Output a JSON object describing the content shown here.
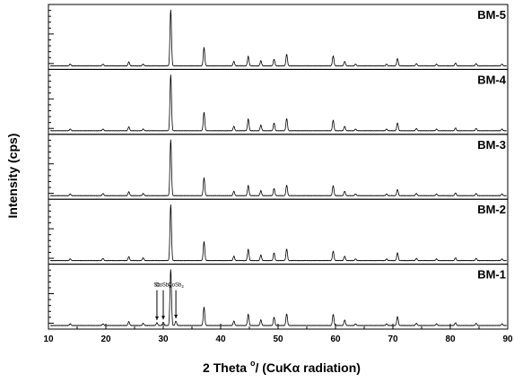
{
  "chart_data": {
    "type": "line",
    "xlabel_parts": {
      "prefix": "2 Theta ",
      "degree": "o",
      "suffix": "/ (CuKα radiation)"
    },
    "ylabel": "Intensity (cps)",
    "xlim": [
      10,
      90
    ],
    "xticks": [
      10,
      20,
      30,
      40,
      50,
      60,
      70,
      80,
      90
    ],
    "panel_order_top_to_bottom": [
      "BM-5",
      "BM-4",
      "BM-3",
      "BM-2",
      "BM-1"
    ],
    "series": [
      {
        "name": "BM-5",
        "peaks": [
          {
            "x": 13.8,
            "y": 0.03
          },
          {
            "x": 19.5,
            "y": 0.03
          },
          {
            "x": 24.0,
            "y": 0.07
          },
          {
            "x": 26.5,
            "y": 0.03
          },
          {
            "x": 31.3,
            "y": 1.0
          },
          {
            "x": 37.1,
            "y": 0.33
          },
          {
            "x": 42.3,
            "y": 0.08
          },
          {
            "x": 44.8,
            "y": 0.17
          },
          {
            "x": 47.0,
            "y": 0.09
          },
          {
            "x": 49.3,
            "y": 0.12
          },
          {
            "x": 51.5,
            "y": 0.21
          },
          {
            "x": 59.6,
            "y": 0.18
          },
          {
            "x": 61.6,
            "y": 0.08
          },
          {
            "x": 63.5,
            "y": 0.03
          },
          {
            "x": 68.9,
            "y": 0.03
          },
          {
            "x": 70.8,
            "y": 0.13
          },
          {
            "x": 74.1,
            "y": 0.04
          },
          {
            "x": 77.6,
            "y": 0.03
          },
          {
            "x": 80.9,
            "y": 0.05
          },
          {
            "x": 84.5,
            "y": 0.04
          },
          {
            "x": 89.0,
            "y": 0.03
          }
        ]
      },
      {
        "name": "BM-4",
        "peaks": [
          {
            "x": 13.8,
            "y": 0.03
          },
          {
            "x": 19.5,
            "y": 0.03
          },
          {
            "x": 24.0,
            "y": 0.07
          },
          {
            "x": 26.5,
            "y": 0.03
          },
          {
            "x": 31.3,
            "y": 1.0
          },
          {
            "x": 37.1,
            "y": 0.33
          },
          {
            "x": 42.3,
            "y": 0.08
          },
          {
            "x": 44.8,
            "y": 0.21
          },
          {
            "x": 47.0,
            "y": 0.1
          },
          {
            "x": 49.3,
            "y": 0.14
          },
          {
            "x": 51.5,
            "y": 0.22
          },
          {
            "x": 59.6,
            "y": 0.19
          },
          {
            "x": 61.6,
            "y": 0.08
          },
          {
            "x": 63.5,
            "y": 0.03
          },
          {
            "x": 68.9,
            "y": 0.03
          },
          {
            "x": 70.8,
            "y": 0.14
          },
          {
            "x": 74.1,
            "y": 0.04
          },
          {
            "x": 77.6,
            "y": 0.03
          },
          {
            "x": 80.9,
            "y": 0.05
          },
          {
            "x": 84.5,
            "y": 0.04
          },
          {
            "x": 89.0,
            "y": 0.03
          }
        ]
      },
      {
        "name": "BM-3",
        "peaks": [
          {
            "x": 13.8,
            "y": 0.03
          },
          {
            "x": 19.5,
            "y": 0.04
          },
          {
            "x": 24.0,
            "y": 0.07
          },
          {
            "x": 26.5,
            "y": 0.04
          },
          {
            "x": 31.3,
            "y": 1.0
          },
          {
            "x": 37.1,
            "y": 0.32
          },
          {
            "x": 42.3,
            "y": 0.08
          },
          {
            "x": 44.8,
            "y": 0.18
          },
          {
            "x": 47.0,
            "y": 0.09
          },
          {
            "x": 49.3,
            "y": 0.13
          },
          {
            "x": 51.5,
            "y": 0.19
          },
          {
            "x": 59.6,
            "y": 0.18
          },
          {
            "x": 61.6,
            "y": 0.08
          },
          {
            "x": 63.5,
            "y": 0.03
          },
          {
            "x": 68.9,
            "y": 0.03
          },
          {
            "x": 70.8,
            "y": 0.11
          },
          {
            "x": 74.1,
            "y": 0.04
          },
          {
            "x": 77.6,
            "y": 0.03
          },
          {
            "x": 80.9,
            "y": 0.05
          },
          {
            "x": 84.5,
            "y": 0.04
          },
          {
            "x": 89.0,
            "y": 0.03
          }
        ]
      },
      {
        "name": "BM-2",
        "peaks": [
          {
            "x": 13.8,
            "y": 0.03
          },
          {
            "x": 19.5,
            "y": 0.04
          },
          {
            "x": 24.0,
            "y": 0.07
          },
          {
            "x": 26.5,
            "y": 0.05
          },
          {
            "x": 31.3,
            "y": 1.0
          },
          {
            "x": 37.1,
            "y": 0.34
          },
          {
            "x": 42.3,
            "y": 0.08
          },
          {
            "x": 44.8,
            "y": 0.2
          },
          {
            "x": 47.0,
            "y": 0.1
          },
          {
            "x": 49.3,
            "y": 0.14
          },
          {
            "x": 51.5,
            "y": 0.21
          },
          {
            "x": 59.6,
            "y": 0.17
          },
          {
            "x": 61.6,
            "y": 0.08
          },
          {
            "x": 63.5,
            "y": 0.03
          },
          {
            "x": 68.9,
            "y": 0.03
          },
          {
            "x": 70.8,
            "y": 0.14
          },
          {
            "x": 74.1,
            "y": 0.04
          },
          {
            "x": 77.6,
            "y": 0.03
          },
          {
            "x": 80.9,
            "y": 0.05
          },
          {
            "x": 84.5,
            "y": 0.04
          },
          {
            "x": 89.0,
            "y": 0.03
          }
        ]
      },
      {
        "name": "BM-1",
        "peaks": [
          {
            "x": 13.8,
            "y": 0.03
          },
          {
            "x": 19.5,
            "y": 0.03
          },
          {
            "x": 24.0,
            "y": 0.07
          },
          {
            "x": 26.5,
            "y": 0.04
          },
          {
            "x": 28.9,
            "y": 0.05
          },
          {
            "x": 30.0,
            "y": 0.06
          },
          {
            "x": 31.3,
            "y": 1.0
          },
          {
            "x": 32.2,
            "y": 0.08
          },
          {
            "x": 37.1,
            "y": 0.33
          },
          {
            "x": 42.3,
            "y": 0.08
          },
          {
            "x": 44.8,
            "y": 0.2
          },
          {
            "x": 47.0,
            "y": 0.1
          },
          {
            "x": 49.3,
            "y": 0.15
          },
          {
            "x": 51.5,
            "y": 0.21
          },
          {
            "x": 59.6,
            "y": 0.2
          },
          {
            "x": 61.6,
            "y": 0.1
          },
          {
            "x": 63.5,
            "y": 0.03
          },
          {
            "x": 68.9,
            "y": 0.03
          },
          {
            "x": 70.8,
            "y": 0.16
          },
          {
            "x": 74.1,
            "y": 0.04
          },
          {
            "x": 77.6,
            "y": 0.03
          },
          {
            "x": 80.9,
            "y": 0.05
          },
          {
            "x": 84.5,
            "y": 0.04
          },
          {
            "x": 89.0,
            "y": 0.03
          }
        ]
      }
    ],
    "annotations": [
      {
        "panel": "BM-1",
        "x": 28.9,
        "parts": [
          "Sb"
        ]
      },
      {
        "panel": "BM-1",
        "x": 30.0,
        "parts": [
          "CoSb",
          "3"
        ]
      },
      {
        "panel": "BM-1",
        "x": 32.2,
        "parts": [
          "CoSb",
          "2"
        ]
      }
    ]
  }
}
